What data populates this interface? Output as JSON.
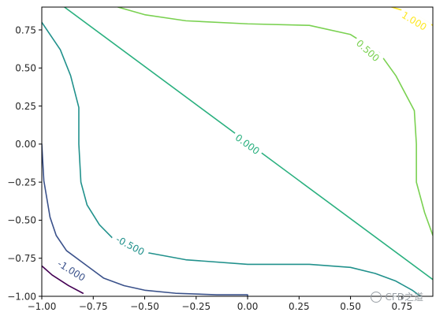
{
  "chart_data": {
    "type": "contour",
    "xlim": [
      -1.0,
      0.9
    ],
    "ylim": [
      -1.0,
      0.9
    ],
    "xticks": [
      -1.0,
      -0.75,
      -0.5,
      -0.25,
      0.0,
      0.25,
      0.5,
      0.75
    ],
    "xtick_labels": [
      "−1.00",
      "−0.75",
      "−0.50",
      "−0.25",
      "0.00",
      "0.25",
      "0.50",
      "0.75"
    ],
    "yticks": [
      -1.0,
      -0.75,
      -0.5,
      -0.25,
      0.0,
      0.25,
      0.5,
      0.75
    ],
    "ytick_labels": [
      "−1.00",
      "−0.75",
      "−0.50",
      "−0.25",
      "0.00",
      "0.25",
      "0.50",
      "0.75"
    ],
    "grid": false,
    "levels": [
      {
        "value": -1.5,
        "label": "",
        "color": "#440154",
        "points": [
          [
            -1.0,
            -0.8
          ],
          [
            -0.95,
            -0.86
          ],
          [
            -0.87,
            -0.93
          ],
          [
            -0.8,
            -0.98
          ]
        ]
      },
      {
        "value": -1.0,
        "label": "-1.000",
        "color": "#3b528b",
        "points": [
          [
            -1.0,
            0.0
          ],
          [
            -0.99,
            -0.24
          ],
          [
            -0.96,
            -0.48
          ],
          [
            -0.93,
            -0.6
          ],
          [
            -0.88,
            -0.7
          ],
          [
            -0.78,
            -0.8
          ],
          [
            -0.7,
            -0.88
          ],
          [
            -0.6,
            -0.93
          ],
          [
            -0.5,
            -0.96
          ],
          [
            -0.35,
            -0.98
          ],
          [
            -0.15,
            -0.99
          ],
          [
            0.0,
            -0.99
          ],
          [
            0.0,
            -1.0
          ]
        ]
      },
      {
        "value": -0.5,
        "label": "-0.500",
        "color": "#21918c",
        "points": [
          [
            -1.0,
            0.8
          ],
          [
            -0.91,
            0.62
          ],
          [
            -0.86,
            0.45
          ],
          [
            -0.82,
            0.24
          ],
          [
            -0.82,
            0.0
          ],
          [
            -0.81,
            -0.25
          ],
          [
            -0.78,
            -0.4
          ],
          [
            -0.72,
            -0.53
          ],
          [
            -0.64,
            -0.64
          ],
          [
            -0.5,
            -0.71
          ],
          [
            -0.3,
            -0.76
          ],
          [
            0.0,
            -0.79
          ],
          [
            0.3,
            -0.79
          ],
          [
            0.5,
            -0.81
          ],
          [
            0.62,
            -0.85
          ],
          [
            0.72,
            -0.9
          ],
          [
            0.8,
            -0.96
          ],
          [
            0.84,
            -1.0
          ]
        ]
      },
      {
        "value": 0.0,
        "label": "0.000",
        "color": "#2ab07f",
        "points": [
          [
            -0.89,
            0.9
          ],
          [
            0.9,
            -0.89
          ]
        ]
      },
      {
        "value": 0.5,
        "label": "0.500",
        "color": "#7ad151",
        "points": [
          [
            -0.63,
            0.9
          ],
          [
            -0.5,
            0.85
          ],
          [
            -0.3,
            0.81
          ],
          [
            0.0,
            0.79
          ],
          [
            0.3,
            0.78
          ],
          [
            0.5,
            0.72
          ],
          [
            0.64,
            0.6
          ],
          [
            0.72,
            0.45
          ],
          [
            0.81,
            0.22
          ],
          [
            0.82,
            0.0
          ],
          [
            0.82,
            -0.25
          ],
          [
            0.86,
            -0.45
          ],
          [
            0.9,
            -0.6
          ]
        ]
      },
      {
        "value": 1.0,
        "label": "1.000",
        "color": "#fde725",
        "points": [
          [
            0.7,
            0.9
          ],
          [
            0.8,
            0.86
          ],
          [
            0.9,
            0.78
          ]
        ]
      }
    ],
    "contour_labels": [
      {
        "text": "1.000",
        "x": 0.81,
        "y": 0.81,
        "angle": 31,
        "color": "#fde725"
      },
      {
        "text": "0.500",
        "x": 0.585,
        "y": 0.615,
        "angle": 42,
        "color": "#7ad151"
      },
      {
        "text": "0.000",
        "x": 0.0,
        "y": 0.0,
        "angle": 36,
        "color": "#2ab07f"
      },
      {
        "text": "-0.500",
        "x": -0.57,
        "y": -0.665,
        "angle": 28,
        "color": "#21918c"
      },
      {
        "text": "-1.000",
        "x": -0.855,
        "y": -0.83,
        "angle": 32,
        "color": "#3b528b"
      }
    ]
  },
  "watermark": {
    "text": "CFD之道"
  }
}
